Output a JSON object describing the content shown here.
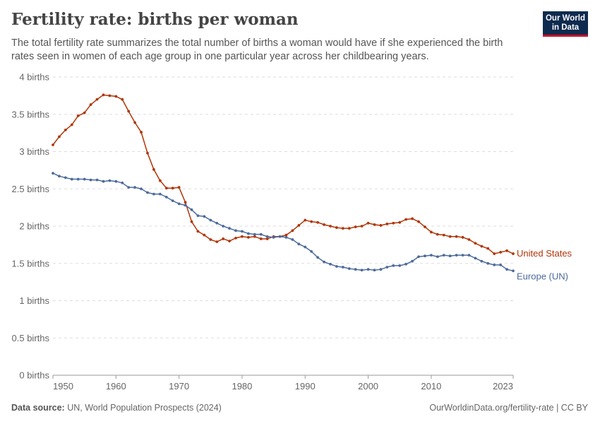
{
  "header": {
    "title": "Fertility rate: births per woman",
    "subtitle": "The total fertility rate summarizes the total number of births a woman would have if she experienced the birth rates seen in women of each age group in one particular year across her childbearing years.",
    "logo_line1": "Our World",
    "logo_line2": "in Data"
  },
  "footer": {
    "source_label": "Data source:",
    "source_text": "UN, World Population Prospects (2024)",
    "link_text": "OurWorldinData.org/fertility-rate",
    "license": "| CC BY"
  },
  "colors": {
    "us": "#b13507",
    "europe": "#4c6a9c",
    "grid": "#dddddd",
    "axis": "#666666"
  },
  "chart_data": {
    "type": "line",
    "title": "Fertility rate: births per woman",
    "xlim": [
      1950,
      2023
    ],
    "ylim": [
      0,
      4
    ],
    "x_ticks": [
      1950,
      1960,
      1970,
      1980,
      1990,
      2000,
      2010,
      2023
    ],
    "y_ticks": [
      {
        "value": 0,
        "label": "0 births"
      },
      {
        "value": 0.5,
        "label": "0.5 births"
      },
      {
        "value": 1,
        "label": "1 births"
      },
      {
        "value": 1.5,
        "label": "1.5 births"
      },
      {
        "value": 2,
        "label": "2 births"
      },
      {
        "value": 2.5,
        "label": "2.5 births"
      },
      {
        "value": 3,
        "label": "3 births"
      },
      {
        "value": 3.5,
        "label": "3.5 births"
      },
      {
        "value": 4,
        "label": "4 births"
      }
    ],
    "grid": "horizontal dashed",
    "x_start": 1950,
    "series": [
      {
        "name": "United States",
        "color": "#b13507",
        "values": [
          3.09,
          3.2,
          3.29,
          3.36,
          3.48,
          3.52,
          3.63,
          3.7,
          3.76,
          3.75,
          3.74,
          3.7,
          3.54,
          3.39,
          3.26,
          2.98,
          2.76,
          2.61,
          2.51,
          2.51,
          2.52,
          2.32,
          2.06,
          1.93,
          1.88,
          1.82,
          1.79,
          1.83,
          1.8,
          1.84,
          1.86,
          1.85,
          1.86,
          1.83,
          1.83,
          1.86,
          1.86,
          1.88,
          1.94,
          2.01,
          2.08,
          2.06,
          2.05,
          2.02,
          2.0,
          1.98,
          1.97,
          1.97,
          1.99,
          2.0,
          2.04,
          2.02,
          2.01,
          2.03,
          2.04,
          2.05,
          2.09,
          2.1,
          2.06,
          1.99,
          1.92,
          1.89,
          1.88,
          1.86,
          1.86,
          1.85,
          1.82,
          1.77,
          1.73,
          1.7,
          1.63,
          1.65,
          1.67,
          1.63
        ]
      },
      {
        "name": "Europe (UN)",
        "color": "#4c6a9c",
        "values": [
          2.71,
          2.67,
          2.65,
          2.63,
          2.63,
          2.63,
          2.62,
          2.62,
          2.6,
          2.61,
          2.6,
          2.58,
          2.52,
          2.52,
          2.5,
          2.45,
          2.43,
          2.43,
          2.39,
          2.34,
          2.3,
          2.28,
          2.22,
          2.14,
          2.13,
          2.08,
          2.04,
          2.0,
          1.97,
          1.94,
          1.93,
          1.9,
          1.89,
          1.89,
          1.86,
          1.85,
          1.86,
          1.85,
          1.82,
          1.76,
          1.72,
          1.66,
          1.58,
          1.52,
          1.49,
          1.46,
          1.45,
          1.43,
          1.42,
          1.41,
          1.42,
          1.41,
          1.42,
          1.45,
          1.47,
          1.47,
          1.49,
          1.53,
          1.59,
          1.6,
          1.61,
          1.59,
          1.61,
          1.6,
          1.61,
          1.61,
          1.61,
          1.57,
          1.53,
          1.5,
          1.48,
          1.48,
          1.42,
          1.4
        ]
      }
    ]
  }
}
